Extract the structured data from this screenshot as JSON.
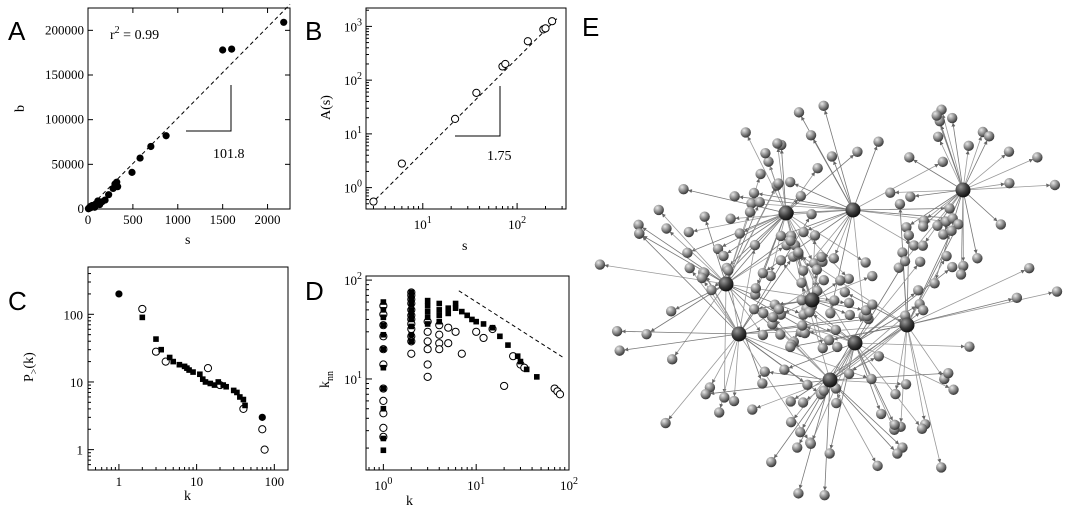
{
  "figure": {
    "panels": [
      "A",
      "B",
      "C",
      "D",
      "E"
    ]
  },
  "chart_data": [
    {
      "panel": "A",
      "type": "scatter",
      "xlabel": "s",
      "ylabel": "b",
      "xlim": [
        0,
        2250
      ],
      "ylim": [
        0,
        225000
      ],
      "xticks": [
        0,
        500,
        1000,
        1500,
        2000
      ],
      "yticks": [
        0,
        50000,
        100000,
        150000,
        200000
      ],
      "annotation": "r² = 0.99",
      "slope_label": "101.8",
      "fit_slope": 101.8,
      "marker": "filled-circle",
      "series": [
        {
          "x": [
            5,
            10,
            15,
            20,
            25,
            30,
            35,
            40,
            50,
            60,
            75,
            90,
            110,
            130,
            155,
            190,
            230,
            280,
            300,
            310,
            320,
            330,
            490,
            580,
            700,
            870,
            1500,
            1600,
            2180
          ],
          "y": [
            300,
            600,
            1200,
            2000,
            2500,
            1500,
            3000,
            3500,
            4000,
            3000,
            2000,
            6000,
            9000,
            5000,
            8000,
            10000,
            16000,
            23000,
            28000,
            27000,
            30000,
            25000,
            41000,
            57000,
            70000,
            82000,
            178000,
            179000,
            209000
          ]
        }
      ]
    },
    {
      "panel": "B",
      "type": "scatter",
      "xscale": "log",
      "yscale": "log",
      "xlabel": "s",
      "ylabel": "A(s)",
      "xlim": [
        2.5,
        330
      ],
      "ylim": [
        0.4,
        2200
      ],
      "xticks": [
        10,
        100
      ],
      "yticks": [
        1,
        10,
        100,
        1000
      ],
      "slope_label": "1.75",
      "fit_slope": 1.75,
      "marker": "open-circle",
      "series": [
        {
          "x": [
            3,
            6,
            22,
            37,
            70,
            75,
            130,
            190,
            200,
            235
          ],
          "y": [
            0.55,
            2.8,
            19,
            58,
            180,
            200,
            530,
            880,
            920,
            1250
          ]
        }
      ]
    },
    {
      "panel": "C",
      "type": "scatter",
      "xscale": "log",
      "yscale": "log",
      "xlabel": "k",
      "ylabel": "P>(k)",
      "xlim": [
        0.4,
        150
      ],
      "ylim": [
        0.5,
        500
      ],
      "xticks": [
        1,
        10,
        100
      ],
      "yticks": [
        1,
        10,
        100
      ],
      "series": [
        {
          "marker": "filled-circle",
          "x": [
            1,
            70,
            75
          ],
          "y": [
            200,
            3,
            1
          ]
        },
        {
          "marker": "open-circle",
          "x": [
            2,
            3,
            4,
            14,
            20,
            40,
            70,
            75
          ],
          "y": [
            120,
            28,
            20,
            16,
            9,
            4,
            2,
            1
          ]
        },
        {
          "marker": "filled-square",
          "x": [
            2,
            3,
            3.5,
            4.5,
            5,
            6,
            7,
            7.5,
            8,
            9,
            11,
            12,
            13,
            15,
            17,
            19,
            22,
            24,
            30,
            33,
            36,
            40,
            42
          ],
          "y": [
            90,
            43,
            30,
            23,
            20,
            18,
            17,
            16,
            15,
            14,
            13,
            11,
            10,
            9.5,
            9,
            10,
            9,
            8.5,
            7.5,
            7,
            6,
            5.5,
            4.5
          ]
        }
      ]
    },
    {
      "panel": "D",
      "type": "scatter",
      "xscale": "log",
      "yscale": "log",
      "xlabel": "k",
      "ylabel": "knn",
      "xlim": [
        0.65,
        100
      ],
      "ylim": [
        1.2,
        110
      ],
      "xticks": [
        1,
        10,
        100
      ],
      "yticks": [
        10,
        100
      ],
      "fit_slope": -0.6,
      "series": [
        {
          "marker": "open-circle",
          "x": [
            1,
            1,
            1,
            1,
            1,
            1,
            1,
            1,
            1,
            1,
            1,
            2,
            2,
            2,
            2,
            2,
            2,
            2,
            2,
            2,
            2,
            2,
            2,
            3,
            3,
            3,
            3,
            3,
            3,
            4,
            4,
            4,
            4,
            5,
            5,
            6,
            7,
            10,
            12,
            15,
            20,
            25,
            30,
            33,
            70,
            75,
            80
          ],
          "y": [
            2.6,
            3.2,
            4.5,
            6,
            8,
            14,
            20,
            27,
            35,
            45,
            55,
            75,
            70,
            64,
            58,
            50,
            44,
            40,
            36,
            32,
            27,
            24,
            18,
            38,
            30,
            24,
            20,
            14,
            10.5,
            35,
            28,
            23,
            20,
            33,
            23,
            30,
            18,
            30,
            26,
            32,
            8.5,
            17,
            14,
            13,
            8,
            7.5,
            7
          ]
        },
        {
          "marker": "filled-square",
          "x": [
            1,
            1,
            1,
            1,
            1,
            1,
            1,
            1,
            1,
            1,
            1,
            2,
            2,
            2,
            2,
            2,
            2,
            2,
            2,
            2,
            2,
            3,
            3,
            3,
            3,
            3,
            4,
            4,
            4,
            4,
            5,
            5,
            6,
            6,
            7,
            8,
            9,
            10,
            12,
            15,
            18,
            22,
            28,
            30,
            35,
            45
          ],
          "y": [
            1.9,
            2.5,
            5,
            8,
            13,
            20,
            28,
            35,
            42,
            50,
            60,
            75,
            70,
            64,
            57,
            50,
            45,
            40,
            34,
            28,
            24,
            62,
            55,
            48,
            42,
            36,
            58,
            50,
            44,
            38,
            52,
            46,
            58,
            52,
            48,
            44,
            40,
            38,
            36,
            33,
            27,
            22,
            17,
            15,
            12.5,
            10.5
          ]
        }
      ]
    },
    {
      "panel": "E",
      "type": "network",
      "description": "directed network with several hubs (dark spheres) and many peripheral nodes (grey spheres)"
    }
  ]
}
